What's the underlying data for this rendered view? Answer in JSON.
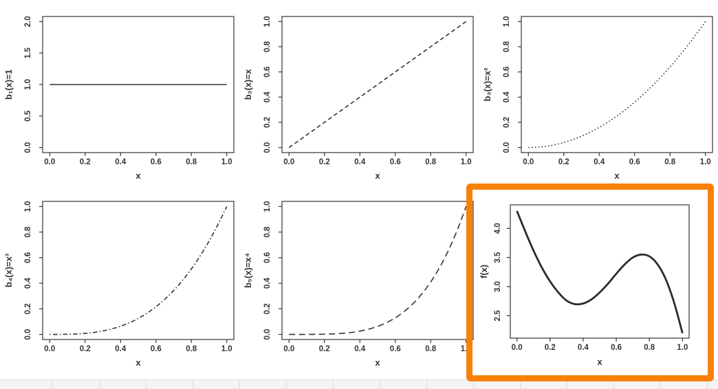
{
  "page": {
    "background": "#ffffff",
    "text_color": "#333333",
    "axis_color": "#333333",
    "highlight": {
      "color": "#f8810b",
      "shape": "rectangle",
      "around": "f(x) panel (bottom-right)"
    },
    "bottom_strip": {
      "fill": "#f4f4f4",
      "divider_color": "#dcdcdc",
      "border_top_color": "#e4e4e4",
      "description": "partial spreadsheet row visible at bottom edge"
    }
  },
  "chart_data": [
    {
      "id": "b1",
      "type": "line",
      "title": "",
      "xlabel": "x",
      "ylabel": "b₁(x)=1",
      "xlim": [
        0,
        1
      ],
      "ylim": [
        0,
        2
      ],
      "xtick_labels": [
        "0.0",
        "0.2",
        "0.4",
        "0.6",
        "0.8",
        "1.0"
      ],
      "xtick_values": [
        0,
        0.2,
        0.4,
        0.6,
        0.8,
        1
      ],
      "ytick_labels": [
        "0.0",
        "0.5",
        "1.0",
        "1.5",
        "2.0"
      ],
      "ytick_values": [
        0,
        0.5,
        1,
        1.5,
        2
      ],
      "line_style": "solid",
      "line_width": 1.6,
      "line_color": "#333333",
      "grid": false,
      "highlighted": false,
      "x": [
        0,
        0.05,
        0.1,
        0.15,
        0.2,
        0.25,
        0.3,
        0.35,
        0.4,
        0.45,
        0.5,
        0.55,
        0.6,
        0.65,
        0.7,
        0.75,
        0.8,
        0.85,
        0.9,
        0.95,
        1
      ],
      "y": [
        1,
        1,
        1,
        1,
        1,
        1,
        1,
        1,
        1,
        1,
        1,
        1,
        1,
        1,
        1,
        1,
        1,
        1,
        1,
        1,
        1
      ]
    },
    {
      "id": "b2",
      "type": "line",
      "title": "",
      "xlabel": "x",
      "ylabel": "b₂(x)=x",
      "xlim": [
        0,
        1
      ],
      "ylim": [
        0,
        1
      ],
      "xtick_labels": [
        "0.0",
        "0.2",
        "0.4",
        "0.6",
        "0.8",
        "1.0"
      ],
      "xtick_values": [
        0,
        0.2,
        0.4,
        0.6,
        0.8,
        1
      ],
      "ytick_labels": [
        "0.0",
        "0.2",
        "0.4",
        "0.6",
        "0.8",
        "1.0"
      ],
      "ytick_values": [
        0,
        0.2,
        0.4,
        0.6,
        0.8,
        1
      ],
      "line_style": "dashed",
      "line_width": 1.6,
      "line_color": "#333333",
      "grid": false,
      "highlighted": false,
      "x": [
        0,
        0.05,
        0.1,
        0.15,
        0.2,
        0.25,
        0.3,
        0.35,
        0.4,
        0.45,
        0.5,
        0.55,
        0.6,
        0.65,
        0.7,
        0.75,
        0.8,
        0.85,
        0.9,
        0.95,
        1
      ],
      "y": [
        0,
        0.05,
        0.1,
        0.15,
        0.2,
        0.25,
        0.3,
        0.35,
        0.4,
        0.45,
        0.5,
        0.55,
        0.6,
        0.65,
        0.7,
        0.75,
        0.8,
        0.85,
        0.9,
        0.95,
        1
      ]
    },
    {
      "id": "b3",
      "type": "line",
      "title": "",
      "xlabel": "x",
      "ylabel": "b₃(x)=x²",
      "xlim": [
        0,
        1
      ],
      "ylim": [
        0,
        1
      ],
      "xtick_labels": [
        "0.0",
        "0.2",
        "0.4",
        "0.6",
        "0.8",
        "1.0"
      ],
      "xtick_values": [
        0,
        0.2,
        0.4,
        0.6,
        0.8,
        1
      ],
      "ytick_labels": [
        "0.0",
        "0.2",
        "0.4",
        "0.6",
        "0.8",
        "1.0"
      ],
      "ytick_values": [
        0,
        0.2,
        0.4,
        0.6,
        0.8,
        1
      ],
      "line_style": "dotted",
      "line_width": 1.6,
      "line_color": "#333333",
      "grid": false,
      "highlighted": false,
      "x": [
        0,
        0.05,
        0.1,
        0.15,
        0.2,
        0.25,
        0.3,
        0.35,
        0.4,
        0.45,
        0.5,
        0.55,
        0.6,
        0.65,
        0.7,
        0.75,
        0.8,
        0.85,
        0.9,
        0.95,
        1
      ],
      "y": [
        0,
        0.0025,
        0.01,
        0.0225,
        0.04,
        0.0625,
        0.09,
        0.1225,
        0.16,
        0.2025,
        0.25,
        0.3025,
        0.36,
        0.4225,
        0.49,
        0.5625,
        0.64,
        0.7225,
        0.81,
        0.9025,
        1
      ]
    },
    {
      "id": "b4",
      "type": "line",
      "title": "",
      "xlabel": "x",
      "ylabel": "b₄(x)=x³",
      "xlim": [
        0,
        1
      ],
      "ylim": [
        0,
        1
      ],
      "xtick_labels": [
        "0.0",
        "0.2",
        "0.4",
        "0.6",
        "0.8",
        "1.0"
      ],
      "xtick_values": [
        0,
        0.2,
        0.4,
        0.6,
        0.8,
        1
      ],
      "ytick_labels": [
        "0.0",
        "0.2",
        "0.4",
        "0.6",
        "0.8",
        "1.0"
      ],
      "ytick_values": [
        0,
        0.2,
        0.4,
        0.6,
        0.8,
        1
      ],
      "line_style": "dashdot",
      "line_width": 1.6,
      "line_color": "#333333",
      "grid": false,
      "highlighted": false,
      "x": [
        0,
        0.05,
        0.1,
        0.15,
        0.2,
        0.25,
        0.3,
        0.35,
        0.4,
        0.45,
        0.5,
        0.55,
        0.6,
        0.65,
        0.7,
        0.75,
        0.8,
        0.85,
        0.9,
        0.95,
        1
      ],
      "y": [
        0,
        0.0001,
        0.001,
        0.0034,
        0.008,
        0.0156,
        0.027,
        0.0429,
        0.064,
        0.0911,
        0.125,
        0.1664,
        0.216,
        0.2746,
        0.343,
        0.4219,
        0.512,
        0.6141,
        0.729,
        0.8574,
        1
      ]
    },
    {
      "id": "b5",
      "type": "line",
      "title": "",
      "xlabel": "x",
      "ylabel": "b₅(x)=x⁴",
      "xlim": [
        0,
        1
      ],
      "ylim": [
        0,
        1
      ],
      "xtick_labels": [
        "0.0",
        "0.2",
        "0.4",
        "0.6",
        "0.8",
        "1.0"
      ],
      "xtick_values": [
        0,
        0.2,
        0.4,
        0.6,
        0.8,
        1
      ],
      "ytick_labels": [
        "0.0",
        "0.2",
        "0.4",
        "0.6",
        "0.8",
        "1.0"
      ],
      "ytick_values": [
        0,
        0.2,
        0.4,
        0.6,
        0.8,
        1
      ],
      "line_style": "longdash",
      "line_width": 1.6,
      "line_color": "#333333",
      "grid": false,
      "highlighted": false,
      "x": [
        0,
        0.05,
        0.1,
        0.15,
        0.2,
        0.25,
        0.3,
        0.35,
        0.4,
        0.45,
        0.5,
        0.55,
        0.6,
        0.65,
        0.7,
        0.75,
        0.8,
        0.85,
        0.9,
        0.95,
        1
      ],
      "y": [
        0,
        0,
        0.0001,
        0.0005,
        0.0016,
        0.0039,
        0.0081,
        0.015,
        0.0256,
        0.041,
        0.0625,
        0.0915,
        0.1296,
        0.1785,
        0.2401,
        0.3164,
        0.4096,
        0.522,
        0.6561,
        0.8145,
        1
      ]
    },
    {
      "id": "f",
      "type": "line",
      "title": "",
      "xlabel": "x",
      "ylabel": "f(x)",
      "xlim": [
        0,
        1
      ],
      "ylim": [
        2.2,
        4.32
      ],
      "xtick_labels": [
        "0.0",
        "0.2",
        "0.4",
        "0.6",
        "0.8",
        "1.0"
      ],
      "xtick_values": [
        0,
        0.2,
        0.4,
        0.6,
        0.8,
        1
      ],
      "ytick_labels": [
        "2.5",
        "3.0",
        "3.5",
        "4.0"
      ],
      "ytick_values": [
        2.5,
        3.0,
        3.5,
        4.0
      ],
      "line_style": "solid",
      "line_width": 2.8,
      "line_color": "#2b2b2b",
      "grid": false,
      "highlighted": true,
      "x": [
        0,
        0.05,
        0.1,
        0.15,
        0.2,
        0.25,
        0.3,
        0.35,
        0.4,
        0.45,
        0.5,
        0.55,
        0.6,
        0.65,
        0.7,
        0.75,
        0.8,
        0.85,
        0.9,
        0.95,
        1
      ],
      "y": [
        4.3,
        3.95,
        3.62,
        3.33,
        3.09,
        2.9,
        2.76,
        2.7,
        2.71,
        2.78,
        2.9,
        3.05,
        3.22,
        3.38,
        3.5,
        3.55,
        3.52,
        3.38,
        3.12,
        2.72,
        2.2
      ]
    }
  ]
}
